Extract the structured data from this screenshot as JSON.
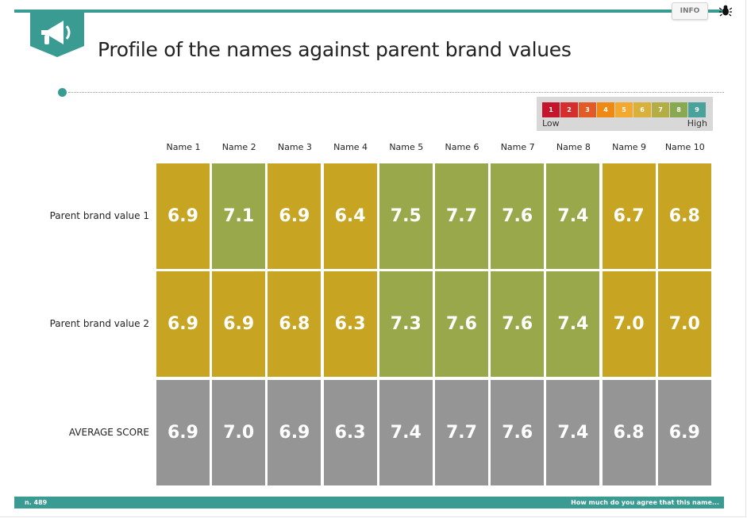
{
  "header": {
    "title": "Profile of the names against parent brand values",
    "info_label": "INFO"
  },
  "legend": {
    "steps": [
      "1",
      "2",
      "3",
      "4",
      "5",
      "6",
      "7",
      "8",
      "9"
    ],
    "colors": [
      "#c7142d",
      "#d42f2c",
      "#e25a25",
      "#ee8a14",
      "#f2a92d",
      "#d9b13a",
      "#b3ad44",
      "#89a852",
      "#49a29c"
    ],
    "low_label": "Low",
    "high_label": "High"
  },
  "footer": {
    "sample": "n. 489",
    "question": "How much do you agree that this name..."
  },
  "chart_data": {
    "type": "heatmap",
    "columns": [
      "Name 1",
      "Name 2",
      "Name 3",
      "Name 4",
      "Name 5",
      "Name 6",
      "Name 7",
      "Name 8",
      "Name 9",
      "Name 10"
    ],
    "rows": [
      {
        "label": "Parent brand value 1",
        "values": [
          "6.9",
          "7.1",
          "6.9",
          "6.4",
          "7.5",
          "7.7",
          "7.6",
          "7.4",
          "6.7",
          "6.8"
        ]
      },
      {
        "label": "Parent brand value 2",
        "values": [
          "6.9",
          "6.9",
          "6.8",
          "6.3",
          "7.3",
          "7.6",
          "7.6",
          "7.4",
          "7.0",
          "7.0"
        ]
      },
      {
        "label": "AVERAGE SCORE",
        "values": [
          "6.9",
          "7.0",
          "6.9",
          "6.3",
          "7.4",
          "7.7",
          "7.6",
          "7.4",
          "6.8",
          "6.9"
        ]
      }
    ],
    "colors": {
      "mid": "#c7a422",
      "high": "#9aa84c",
      "average": "#959595"
    },
    "scale": [
      1,
      9
    ]
  }
}
